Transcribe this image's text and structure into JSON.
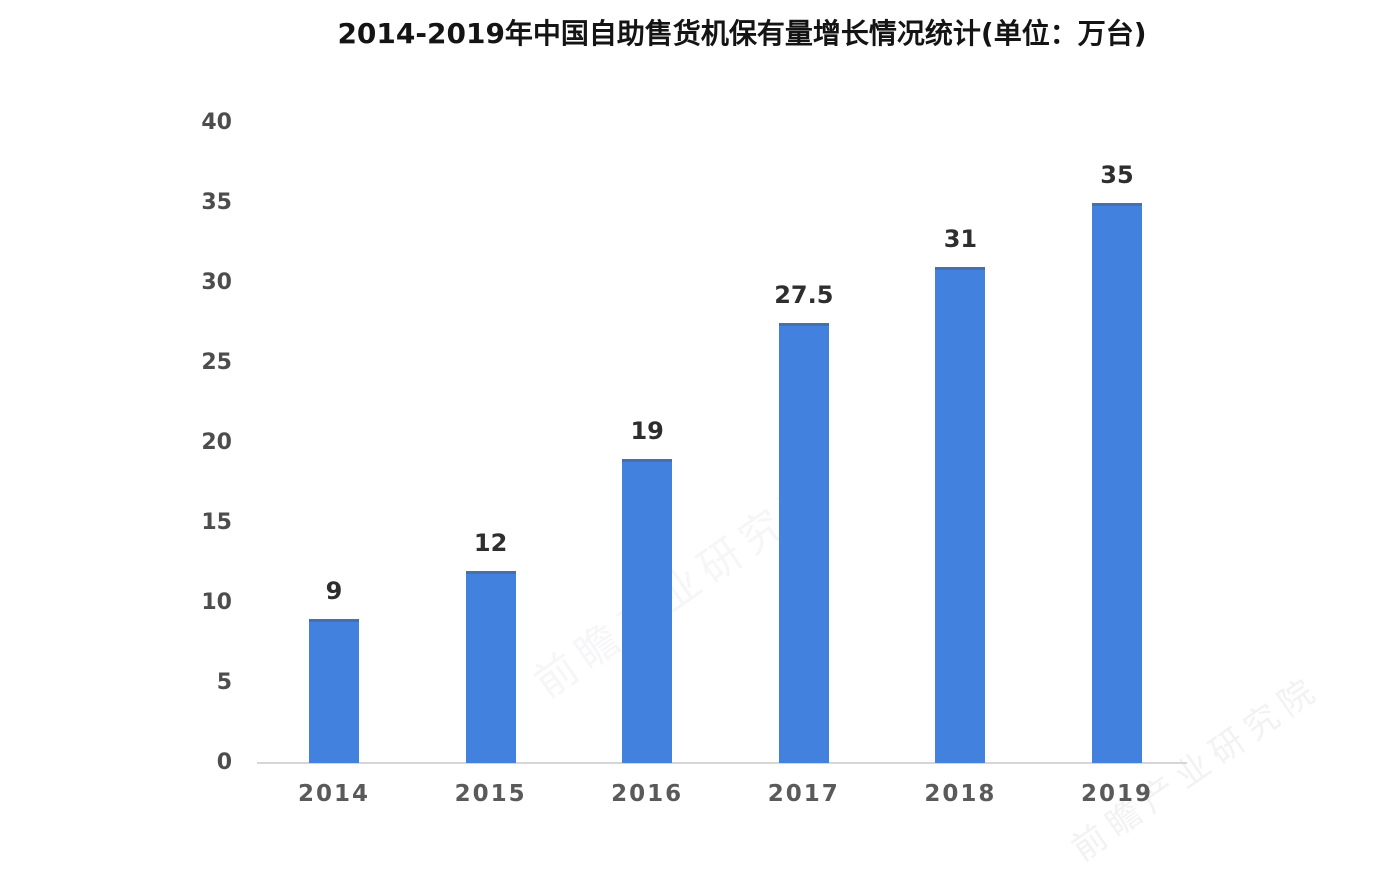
{
  "title": "2014-2019年中国自助售货机保有量增长情况统计(单位：万台)",
  "watermark": {
    "text": "前瞻产业研究院"
  },
  "chart_data": {
    "type": "bar",
    "title": "2014-2019年中国自助售货机保有量增长情况统计(单位：万台)",
    "categories": [
      "2014",
      "2015",
      "2016",
      "2017",
      "2018",
      "2019"
    ],
    "values": [
      9,
      12,
      19,
      27.5,
      31,
      35
    ],
    "data_labels": [
      "9",
      "12",
      "19",
      "27.5",
      "31",
      "35"
    ],
    "unit": "万台",
    "xlabel": "",
    "ylabel": "",
    "ylim": [
      0,
      40
    ],
    "yticks": [
      0,
      5,
      10,
      15,
      20,
      25,
      30,
      35,
      40
    ],
    "grid": false,
    "legend_position": "none",
    "bar_color": "#4281DE",
    "axis_line_color": "#d6d6d6",
    "title_color": "#141414",
    "value_label_color": "#2e2e2e",
    "tick_label_color": "#4d4d4d"
  }
}
